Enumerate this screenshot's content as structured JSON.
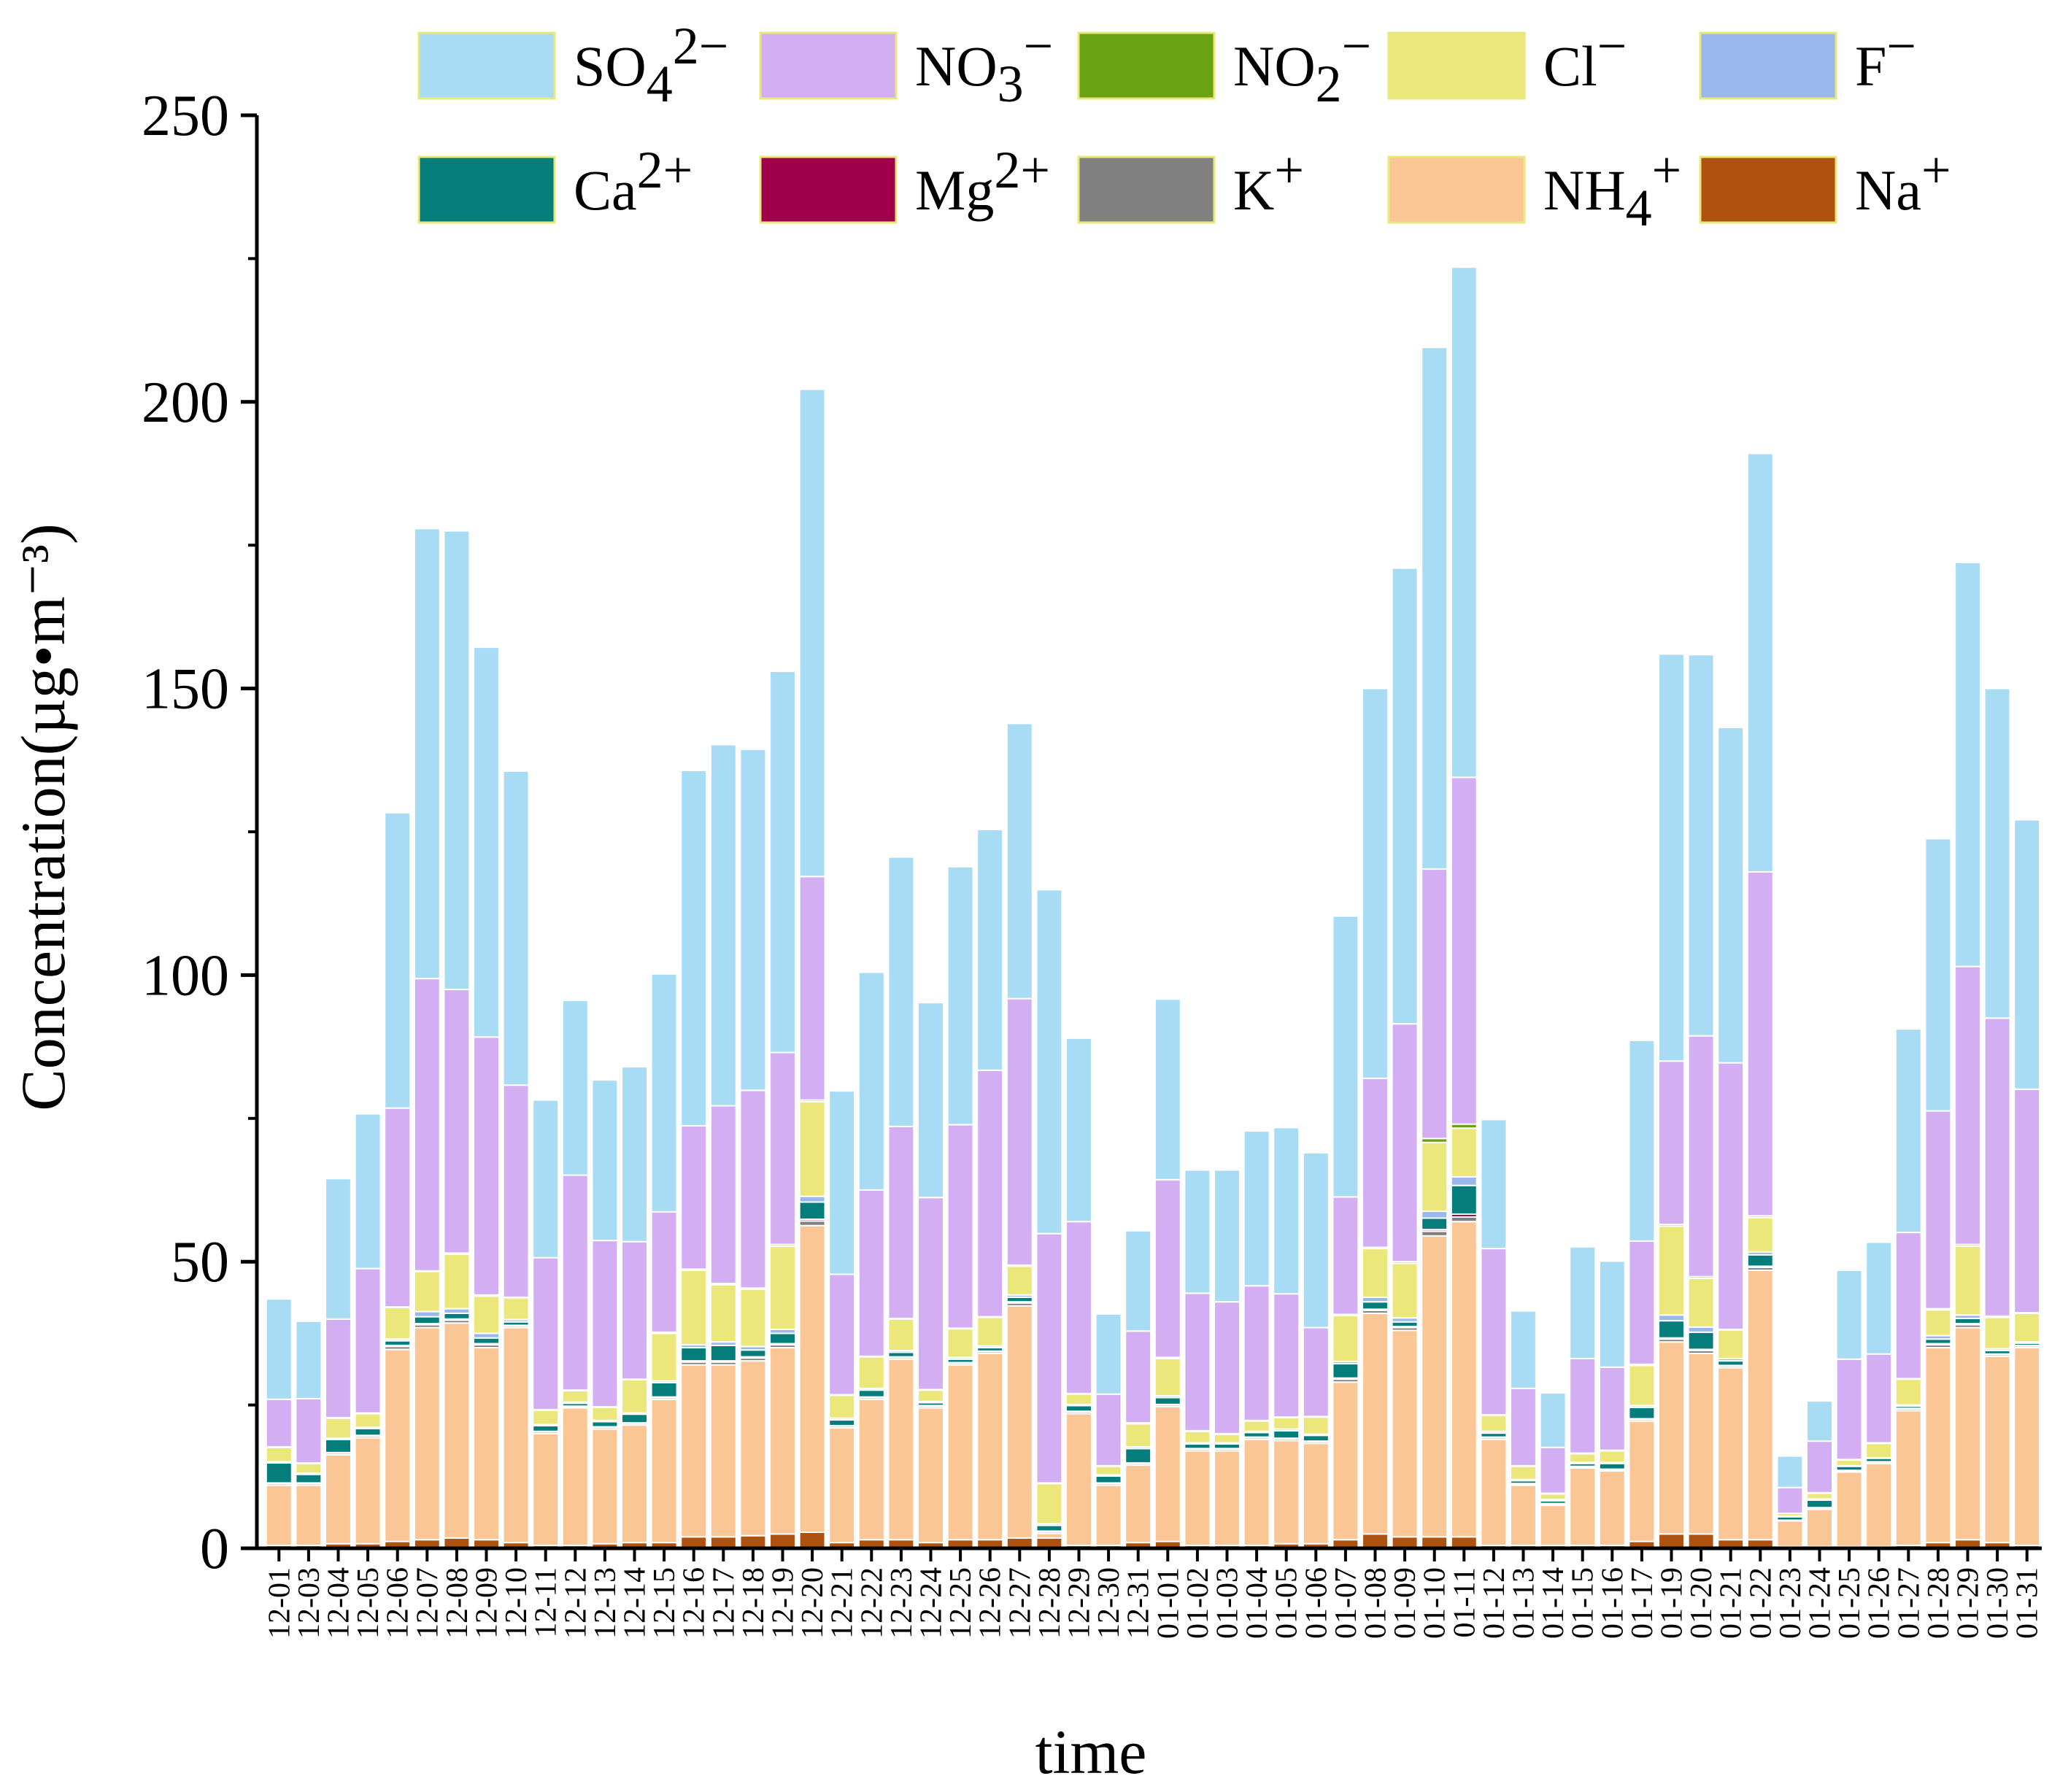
{
  "chart_data": {
    "type": "bar",
    "stacked": true,
    "xlabel": "time",
    "ylabel": "Concentration(µg•m⁻³)",
    "ylim": [
      0,
      250
    ],
    "yticks": [
      0,
      50,
      100,
      150,
      200,
      250
    ],
    "categories": [
      "12-01",
      "12-03",
      "12-04",
      "12-05",
      "12-06",
      "12-07",
      "12-08",
      "12-09",
      "12-10",
      "12-11",
      "12-12",
      "12-13",
      "12-14",
      "12-15",
      "12-16",
      "12-17",
      "12-18",
      "12-19",
      "12-20",
      "12-21",
      "12-22",
      "12-23",
      "12-24",
      "12-25",
      "12-26",
      "12-27",
      "12-28",
      "12-29",
      "12-30",
      "12-31",
      "01-01",
      "01-02",
      "01-03",
      "01-04",
      "01-05",
      "01-06",
      "01-07",
      "01-08",
      "01-09",
      "01-10",
      "01-11",
      "01-12",
      "01-13",
      "01-14",
      "01-15",
      "01-16",
      "01-17",
      "01-19",
      "01-20",
      "01-21",
      "01-22",
      "01-23",
      "01-24",
      "01-25",
      "01-26",
      "01-27",
      "01-28",
      "01-29",
      "01-30",
      "01-31"
    ],
    "legend": {
      "placement": "top",
      "entries": [
        {
          "key": "so4",
          "base": "SO",
          "sub": "4",
          "sup": "2−"
        },
        {
          "key": "no3",
          "base": "NO",
          "sub": "3",
          "sup": "−"
        },
        {
          "key": "no2",
          "base": "NO",
          "sub": "2",
          "sup": "−"
        },
        {
          "key": "cl",
          "base": "Cl",
          "sub": "",
          "sup": "−"
        },
        {
          "key": "f",
          "base": "F",
          "sub": "",
          "sup": "−"
        },
        {
          "key": "ca",
          "base": "Ca",
          "sub": "",
          "sup": "2+"
        },
        {
          "key": "mg",
          "base": "Mg",
          "sub": "",
          "sup": "2+"
        },
        {
          "key": "k",
          "base": "K",
          "sub": "",
          "sup": "+"
        },
        {
          "key": "nh4",
          "base": "NH",
          "sub": "4",
          "sup": "+"
        },
        {
          "key": "na",
          "base": "Na",
          "sub": "",
          "sup": "+"
        }
      ]
    },
    "stack_order": [
      "na",
      "nh4",
      "k",
      "mg",
      "ca",
      "f",
      "cl",
      "no2",
      "no3",
      "so4"
    ],
    "colors": {
      "so4": "#a8dcf4",
      "no3": "#d4aef2",
      "no2": "#6aa216",
      "cl": "#ece77a",
      "f": "#9ab8ec",
      "ca": "#057d7a",
      "mg": "#a0004b",
      "k": "#808080",
      "nh4": "#fbc696",
      "na": "#b0520f"
    },
    "series": [
      {
        "key": "na",
        "values": [
          0.5,
          0.5,
          0.8,
          0.8,
          1.2,
          1.5,
          1.8,
          1.5,
          1.0,
          0.5,
          0.5,
          0.8,
          1.0,
          1.0,
          2.0,
          2.0,
          2.2,
          2.5,
          2.8,
          1.0,
          1.5,
          1.5,
          1.0,
          1.5,
          1.5,
          1.8,
          1.8,
          0.5,
          0.5,
          1.0,
          1.2,
          0.5,
          0.5,
          0.5,
          0.8,
          0.8,
          1.5,
          2.5,
          2.0,
          2.0,
          2.0,
          0.5,
          0.5,
          0.5,
          0.5,
          0.5,
          1.2,
          2.5,
          2.5,
          1.5,
          1.5,
          0.3,
          0.3,
          0.3,
          0.3,
          0.5,
          1.0,
          1.5,
          1.0,
          0.5
        ]
      },
      {
        "key": "nh4",
        "values": [
          10.5,
          10.5,
          15.5,
          18.5,
          33.5,
          37.0,
          37.5,
          33.5,
          37.5,
          19.5,
          24.0,
          20.0,
          20.5,
          25.0,
          30.0,
          30.0,
          30.5,
          32.5,
          53.5,
          20.0,
          24.5,
          31.5,
          23.5,
          30.5,
          32.5,
          40.5,
          0.8,
          23.0,
          10.5,
          13.5,
          23.5,
          16.5,
          16.5,
          18.5,
          18.0,
          17.5,
          27.5,
          38.5,
          36.0,
          52.5,
          55.0,
          18.5,
          10.5,
          7.0,
          13.5,
          13.0,
          21.0,
          33.5,
          31.5,
          30.0,
          47.0,
          4.5,
          6.5,
          13.0,
          14.5,
          23.5,
          34.0,
          37.0,
          32.5,
          34.5
        ]
      },
      {
        "key": "k",
        "values": [
          0.3,
          0.3,
          0.3,
          0.3,
          0.5,
          0.5,
          0.5,
          0.5,
          0.3,
          0.3,
          0.2,
          0.3,
          0.3,
          0.3,
          0.5,
          0.5,
          0.5,
          0.5,
          0.8,
          0.3,
          0.3,
          0.3,
          0.3,
          0.3,
          0.3,
          0.5,
          0.3,
          0.3,
          0.3,
          0.3,
          0.3,
          0.3,
          0.3,
          0.3,
          0.3,
          0.3,
          0.5,
          0.5,
          0.5,
          0.8,
          0.8,
          0.3,
          0.2,
          0.2,
          0.2,
          0.2,
          0.3,
          0.5,
          0.5,
          0.3,
          0.5,
          0.1,
          0.2,
          0.2,
          0.2,
          0.3,
          0.5,
          0.5,
          0.3,
          0.3
        ]
      },
      {
        "key": "mg",
        "values": [
          0.1,
          0.1,
          0.1,
          0.1,
          0.2,
          0.2,
          0.2,
          0.2,
          0.1,
          0.1,
          0.1,
          0.1,
          0.1,
          0.1,
          0.2,
          0.2,
          0.2,
          0.2,
          0.3,
          0.1,
          0.1,
          0.1,
          0.1,
          0.1,
          0.1,
          0.2,
          0.1,
          0.1,
          0.1,
          0.1,
          0.1,
          0.1,
          0.1,
          0.1,
          0.1,
          0.1,
          0.2,
          0.2,
          0.2,
          0.3,
          0.5,
          0.1,
          0.1,
          0.1,
          0.1,
          0.1,
          0.1,
          0.2,
          0.2,
          0.1,
          0.2,
          0.0,
          0.1,
          0.1,
          0.1,
          0.1,
          0.2,
          0.2,
          0.1,
          0.1
        ]
      },
      {
        "key": "ca",
        "values": [
          3.5,
          1.5,
          2.3,
          1.2,
          0.8,
          1.2,
          1.0,
          1.0,
          0.6,
          1.0,
          0.5,
          0.9,
          1.5,
          2.5,
          2.3,
          2.7,
          1.2,
          1.8,
          3.0,
          1.0,
          1.2,
          0.8,
          0.5,
          0.6,
          0.6,
          0.8,
          1.0,
          1.0,
          1.2,
          2.5,
          1.2,
          0.8,
          0.8,
          0.8,
          1.3,
          1.0,
          2.5,
          1.3,
          0.8,
          2.0,
          5.0,
          0.7,
          0.5,
          0.5,
          0.5,
          1.0,
          2.0,
          3.0,
          3.0,
          0.8,
          2.0,
          0.6,
          1.3,
          0.7,
          0.6,
          0.4,
          0.8,
          0.9,
          0.6,
          0.4
        ]
      },
      {
        "key": "f",
        "values": [
          0.2,
          0.2,
          0.2,
          0.2,
          0.3,
          0.9,
          0.8,
          0.8,
          0.4,
          0.2,
          0.2,
          0.2,
          0.2,
          0.3,
          0.5,
          0.6,
          0.6,
          0.7,
          1.0,
          0.3,
          0.3,
          0.3,
          0.2,
          0.3,
          0.3,
          0.4,
          0.3,
          0.2,
          0.2,
          0.3,
          0.3,
          0.2,
          0.2,
          0.2,
          0.3,
          0.2,
          0.4,
          0.8,
          0.7,
          1.2,
          1.5,
          0.3,
          0.2,
          0.2,
          0.2,
          0.2,
          0.3,
          1.0,
          0.9,
          0.4,
          0.5,
          0.1,
          0.2,
          0.1,
          0.1,
          0.2,
          0.6,
          0.6,
          0.3,
          0.2
        ]
      },
      {
        "key": "cl",
        "values": [
          2.5,
          1.7,
          3.5,
          2.4,
          5.5,
          7.0,
          9.5,
          6.5,
          3.8,
          2.5,
          2.0,
          2.3,
          5.8,
          8.3,
          13.0,
          10.0,
          10.0,
          14.5,
          16.5,
          4.0,
          5.5,
          5.5,
          2.0,
          5.0,
          5.0,
          5.0,
          7.0,
          1.8,
          1.5,
          4.0,
          6.5,
          2.0,
          1.5,
          1.8,
          2.0,
          3.0,
          8.0,
          8.5,
          9.5,
          12.0,
          8.5,
          2.8,
          2.3,
          1.0,
          1.5,
          2.0,
          7.0,
          15.5,
          8.5,
          5.0,
          6.0,
          0.5,
          1.0,
          1.0,
          2.5,
          4.5,
          4.5,
          12.0,
          5.5,
          5.0
        ]
      },
      {
        "key": "no2",
        "values": [
          0.1,
          0.1,
          0.1,
          0.1,
          0.1,
          0.1,
          0.2,
          0.2,
          0.1,
          0.1,
          0.1,
          0.1,
          0.1,
          0.2,
          0.2,
          0.2,
          0.2,
          0.3,
          0.3,
          0.1,
          0.1,
          0.1,
          0.1,
          0.1,
          0.1,
          0.2,
          0.1,
          0.1,
          0.1,
          0.2,
          0.2,
          0.1,
          0.1,
          0.1,
          0.1,
          0.1,
          0.2,
          0.2,
          0.3,
          0.7,
          0.7,
          0.1,
          0.1,
          0.1,
          0.1,
          0.1,
          0.2,
          0.3,
          0.3,
          0.1,
          0.3,
          0.0,
          0.1,
          0.1,
          0.1,
          0.1,
          0.2,
          0.3,
          0.2,
          0.1
        ]
      },
      {
        "key": "no3",
        "values": [
          8.3,
          11.2,
          17.2,
          25.2,
          34.7,
          51.0,
          46.0,
          45.0,
          37.0,
          26.5,
          37.5,
          29.0,
          24.0,
          21.0,
          25.0,
          31.0,
          34.5,
          33.5,
          39.0,
          21.0,
          29.0,
          33.5,
          33.5,
          35.5,
          43.0,
          46.5,
          43.5,
          30.0,
          12.5,
          16.0,
          31.0,
          24.0,
          23.0,
          23.5,
          21.5,
          15.5,
          20.5,
          29.5,
          41.5,
          47.0,
          60.5,
          29.0,
          13.5,
          8.0,
          16.5,
          14.5,
          21.5,
          28.5,
          42.0,
          46.5,
          60.0,
          4.5,
          9.0,
          17.5,
          15.5,
          25.5,
          34.5,
          48.5,
          52.0,
          39.0
        ]
      },
      {
        "key": "so4",
        "values": [
          17.5,
          13.5,
          24.5,
          27.0,
          51.5,
          78.5,
          80.0,
          68.0,
          54.8,
          27.5,
          30.5,
          28.0,
          30.5,
          41.5,
          62.0,
          63.0,
          59.5,
          66.5,
          85.0,
          32.0,
          38.0,
          47.0,
          34.0,
          45.0,
          42.0,
          48.0,
          60.0,
          32.0,
          14.0,
          17.5,
          31.5,
          21.5,
          23.0,
          27.0,
          29.0,
          30.5,
          49.0,
          68.0,
          79.5,
          91.0,
          89.0,
          22.5,
          13.5,
          9.5,
          19.5,
          18.5,
          35.0,
          71.0,
          66.5,
          58.5,
          73.0,
          5.5,
          7.0,
          15.5,
          19.5,
          35.5,
          47.5,
          70.5,
          57.5,
          47.0
        ]
      }
    ]
  }
}
